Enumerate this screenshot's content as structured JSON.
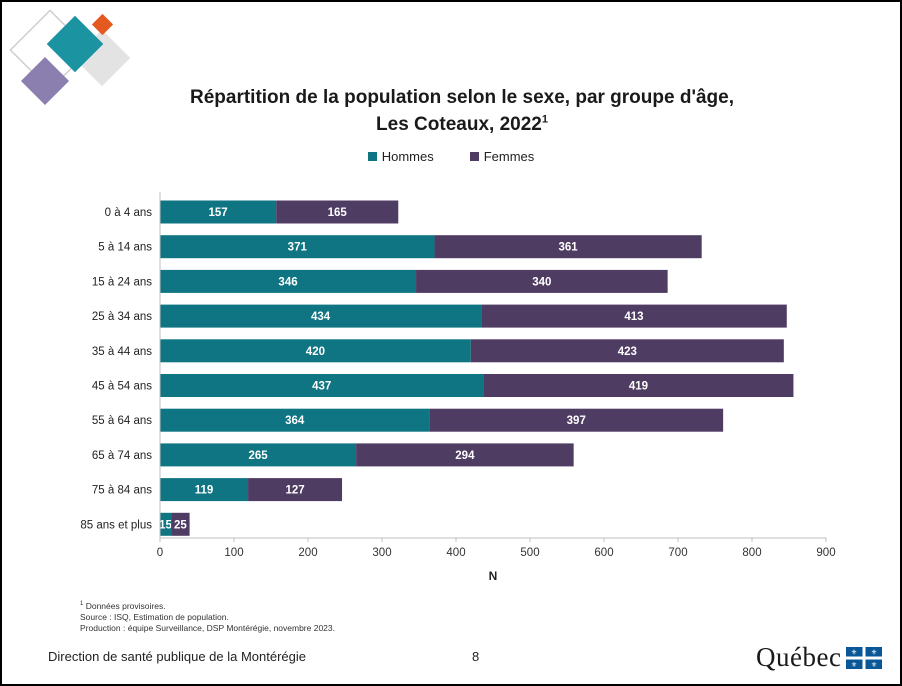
{
  "slide": {
    "title_line1": "Répartition de la population selon le sexe, par groupe d'âge,",
    "title_line2": "Les Coteaux, 2022",
    "title_sup": "1",
    "footnote_sup": "1",
    "footnote": " Données provisoires.",
    "source": "Source : ISQ, Estimation de population.",
    "production": "Production : équipe Surveillance, DSP Montérégie, novembre 2023.",
    "footer_left": "Direction de santé publique de la Montérégie",
    "page_number": "8",
    "logo_word": "Québec"
  },
  "colors": {
    "hommes": "#0f7582",
    "femmes": "#4f3c63",
    "deco_teal": "#1b93a0",
    "deco_orange": "#e4591f",
    "deco_purple": "#8a7fae",
    "deco_gray": "#d9d9d9",
    "quebec_blue": "#095797"
  },
  "chart_data": {
    "type": "bar",
    "orientation": "horizontal",
    "stacked": true,
    "categories": [
      "0 à 4 ans",
      "5 à 14 ans",
      "15 à 24 ans",
      "25 à 34 ans",
      "35 à 44 ans",
      "45 à 54 ans",
      "55 à 64 ans",
      "65 à 74 ans",
      "75 à 84 ans",
      "85 ans et plus"
    ],
    "series": [
      {
        "name": "Hommes",
        "values": [
          157,
          371,
          346,
          434,
          420,
          437,
          364,
          265,
          119,
          15
        ]
      },
      {
        "name": "Femmes",
        "values": [
          165,
          361,
          340,
          413,
          423,
          419,
          397,
          294,
          127,
          25
        ]
      }
    ],
    "xlabel": "N",
    "xlim": [
      0,
      900
    ],
    "xticks": [
      0,
      100,
      200,
      300,
      400,
      500,
      600,
      700,
      800,
      900
    ],
    "data_labels": true,
    "grid": false,
    "legend_position": "top"
  }
}
